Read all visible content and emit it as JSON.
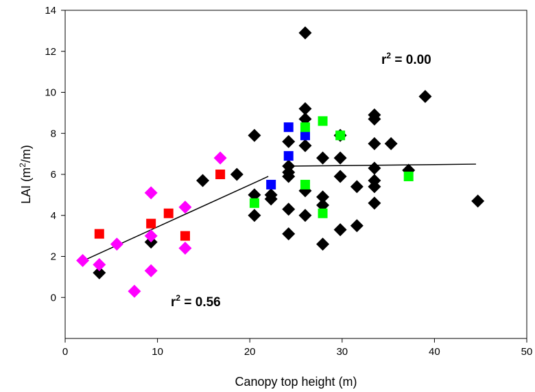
{
  "chart_data": {
    "type": "scatter",
    "title": "",
    "xlabel": "Canopy top height (m)",
    "ylabel_main": "LAI (m",
    "ylabel_sup": "2",
    "ylabel_end": "/m)",
    "xlim": [
      0,
      50
    ],
    "ylim": [
      -2,
      14
    ],
    "xticks": [
      0,
      10,
      20,
      30,
      40,
      50
    ],
    "yticks": [
      0,
      2,
      4,
      6,
      8,
      10,
      12,
      14
    ],
    "grid": false,
    "legend": "none",
    "annotations": [
      {
        "id": "r2-left",
        "prefix": "r",
        "sup": "2",
        "suffix": " = 0.56"
      },
      {
        "id": "r2-right",
        "prefix": "r",
        "sup": "2",
        "suffix": " = 0.00"
      }
    ],
    "fit_lines": [
      {
        "x": [
          2,
          22
        ],
        "y": [
          1.8,
          5.9
        ]
      },
      {
        "x": [
          24,
          44.5
        ],
        "y": [
          6.4,
          6.5
        ]
      }
    ],
    "series": [
      {
        "marker": "diamond",
        "color": "#000000",
        "points": [
          [
            26,
            12.9
          ],
          [
            39,
            9.8
          ],
          [
            33.5,
            8.9
          ],
          [
            33.5,
            8.7
          ],
          [
            26,
            9.2
          ],
          [
            26,
            8.7
          ],
          [
            20.5,
            7.9
          ],
          [
            29.8,
            7.9
          ],
          [
            24.2,
            7.6
          ],
          [
            26,
            7.4
          ],
          [
            33.5,
            7.5
          ],
          [
            35.3,
            7.5
          ],
          [
            27.9,
            6.8
          ],
          [
            29.8,
            6.8
          ],
          [
            24.2,
            6.4
          ],
          [
            24.2,
            6.1
          ],
          [
            24.2,
            5.9
          ],
          [
            33.5,
            6.3
          ],
          [
            37.2,
            6.2
          ],
          [
            29.8,
            5.9
          ],
          [
            18.6,
            6.0
          ],
          [
            14.9,
            5.7
          ],
          [
            26,
            5.2
          ],
          [
            31.6,
            5.4
          ],
          [
            33.5,
            5.7
          ],
          [
            33.5,
            5.4
          ],
          [
            20.5,
            5.0
          ],
          [
            22.3,
            5.0
          ],
          [
            22.3,
            4.8
          ],
          [
            27.9,
            4.9
          ],
          [
            27.9,
            4.5
          ],
          [
            33.5,
            4.6
          ],
          [
            44.7,
            4.7
          ],
          [
            24.2,
            4.3
          ],
          [
            26,
            4.0
          ],
          [
            20.5,
            4.0
          ],
          [
            31.6,
            3.5
          ],
          [
            29.8,
            3.3
          ],
          [
            24.2,
            3.1
          ],
          [
            27.9,
            2.6
          ],
          [
            9.3,
            2.7
          ],
          [
            3.7,
            1.2
          ]
        ]
      },
      {
        "marker": "diamond",
        "color": "#ff00ff",
        "points": [
          [
            16.8,
            6.8
          ],
          [
            9.3,
            5.1
          ],
          [
            13,
            4.4
          ],
          [
            9.3,
            3.0
          ],
          [
            5.6,
            2.6
          ],
          [
            13,
            2.4
          ],
          [
            1.9,
            1.8
          ],
          [
            3.7,
            1.6
          ],
          [
            9.3,
            1.3
          ],
          [
            7.5,
            0.3
          ]
        ]
      },
      {
        "marker": "square",
        "color": "#ff0000",
        "points": [
          [
            16.8,
            6.0
          ],
          [
            11.2,
            4.1
          ],
          [
            9.3,
            3.6
          ],
          [
            3.7,
            3.1
          ],
          [
            13,
            3.0
          ]
        ]
      },
      {
        "marker": "square",
        "color": "#0000ff",
        "points": [
          [
            24.2,
            8.3
          ],
          [
            26,
            7.9
          ],
          [
            24.2,
            6.9
          ],
          [
            22.3,
            5.5
          ]
        ]
      },
      {
        "marker": "square",
        "color": "#00ff00",
        "points": [
          [
            27.9,
            8.6
          ],
          [
            26,
            8.3
          ],
          [
            29.8,
            7.9
          ],
          [
            37.2,
            5.9
          ],
          [
            26,
            5.5
          ],
          [
            20.5,
            4.6
          ],
          [
            27.9,
            4.1
          ]
        ]
      }
    ]
  }
}
